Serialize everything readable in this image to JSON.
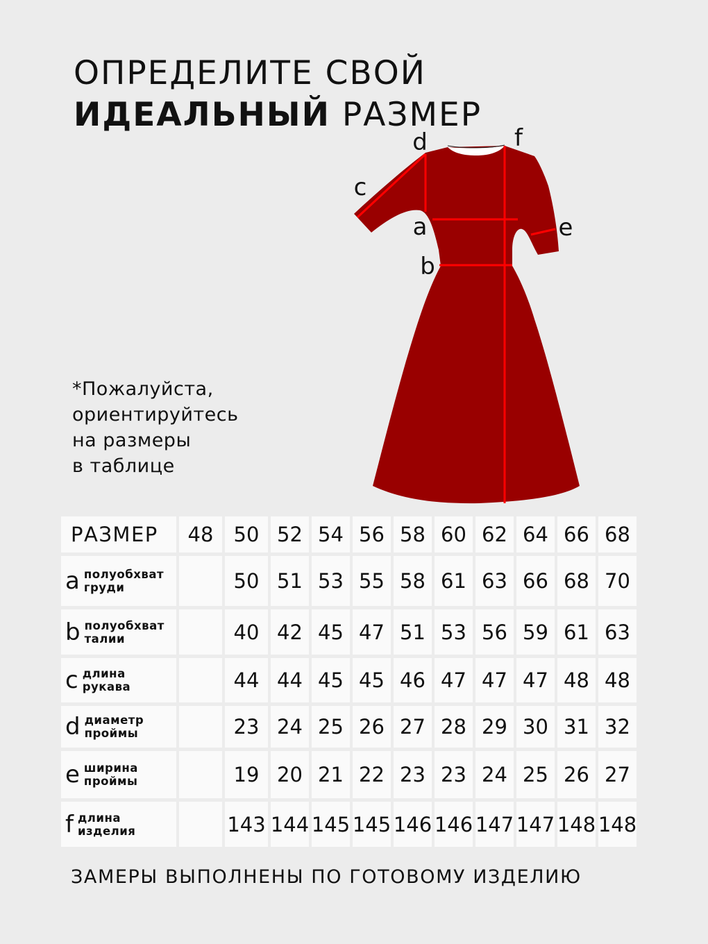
{
  "title": {
    "line1": "ОПРЕДЕЛИТЕ СВОЙ",
    "line2_bold": "ИДЕАЛЬНЫЙ",
    "line2_regular": "РАЗМЕР"
  },
  "note": [
    "*Пожалуйста,",
    "ориентируйтесь",
    "на размеры",
    "в таблице"
  ],
  "diagram": {
    "labels": {
      "a": "a",
      "b": "b",
      "c": "c",
      "d": "d",
      "e": "e",
      "f": "f"
    },
    "colors": {
      "dress": "#990000",
      "measure_lines": "#ff0000",
      "background": "#ececec"
    }
  },
  "table": {
    "header_label": "РАЗМЕР",
    "sizes": [
      "48",
      "50",
      "52",
      "54",
      "56",
      "58",
      "60",
      "62",
      "64",
      "66",
      "68"
    ],
    "rows": [
      {
        "letter": "a",
        "line1": "полуобхват",
        "line2": "груди",
        "values": [
          "",
          "50",
          "51",
          "53",
          "55",
          "58",
          "61",
          "63",
          "66",
          "68",
          "70"
        ]
      },
      {
        "letter": "b",
        "line1": "полуобхват",
        "line2": "талии",
        "values": [
          "",
          "40",
          "42",
          "45",
          "47",
          "51",
          "53",
          "56",
          "59",
          "61",
          "63"
        ]
      },
      {
        "letter": "c",
        "line1": "длина",
        "line2": "рукава",
        "values": [
          "",
          "44",
          "44",
          "45",
          "45",
          "46",
          "47",
          "47",
          "47",
          "48",
          "48"
        ]
      },
      {
        "letter": "d",
        "line1": "диаметр",
        "line2": "проймы",
        "values": [
          "",
          "23",
          "24",
          "25",
          "26",
          "27",
          "28",
          "29",
          "30",
          "31",
          "32"
        ]
      },
      {
        "letter": "e",
        "line1": "ширина",
        "line2": "проймы",
        "values": [
          "",
          "19",
          "20",
          "21",
          "22",
          "23",
          "23",
          "24",
          "25",
          "26",
          "27"
        ]
      },
      {
        "letter": "f",
        "line1": "длина",
        "line2": "изделия",
        "values": [
          "",
          "143",
          "144",
          "145",
          "145",
          "146",
          "146",
          "147",
          "147",
          "148",
          "148"
        ]
      }
    ]
  },
  "footer": "ЗАМЕРЫ ВЫПОЛНЕНЫ ПО ГОТОВОМУ ИЗДЕЛИЮ"
}
